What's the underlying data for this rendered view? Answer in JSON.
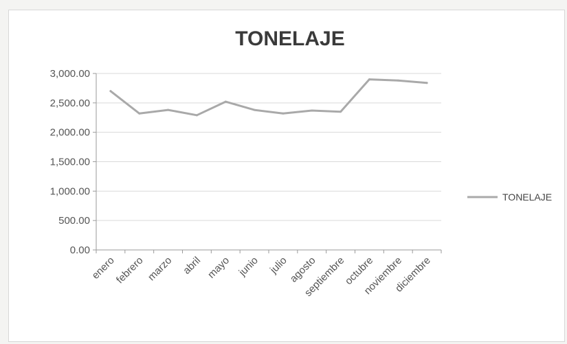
{
  "chart_data": {
    "type": "line",
    "title": "TONELAJE",
    "categories": [
      "enero",
      "febrero",
      "marzo",
      "abril",
      "mayo",
      "junio",
      "julio",
      "agosto",
      "septiembre",
      "octubre",
      "noviembre",
      "diciembre"
    ],
    "series": [
      {
        "name": "TONELAJE",
        "values": [
          2700,
          2320,
          2380,
          2290,
          2520,
          2380,
          2320,
          2370,
          2350,
          2900,
          2880,
          2840
        ]
      }
    ],
    "y_ticks": [
      "0.00",
      "500.00",
      "1,000.00",
      "1,500.00",
      "2,000.00",
      "2,500.00",
      "3,000.00"
    ],
    "ylim": [
      0,
      3000
    ],
    "grid": true,
    "legend_position": "right",
    "line_color": "#a9a9a9"
  }
}
